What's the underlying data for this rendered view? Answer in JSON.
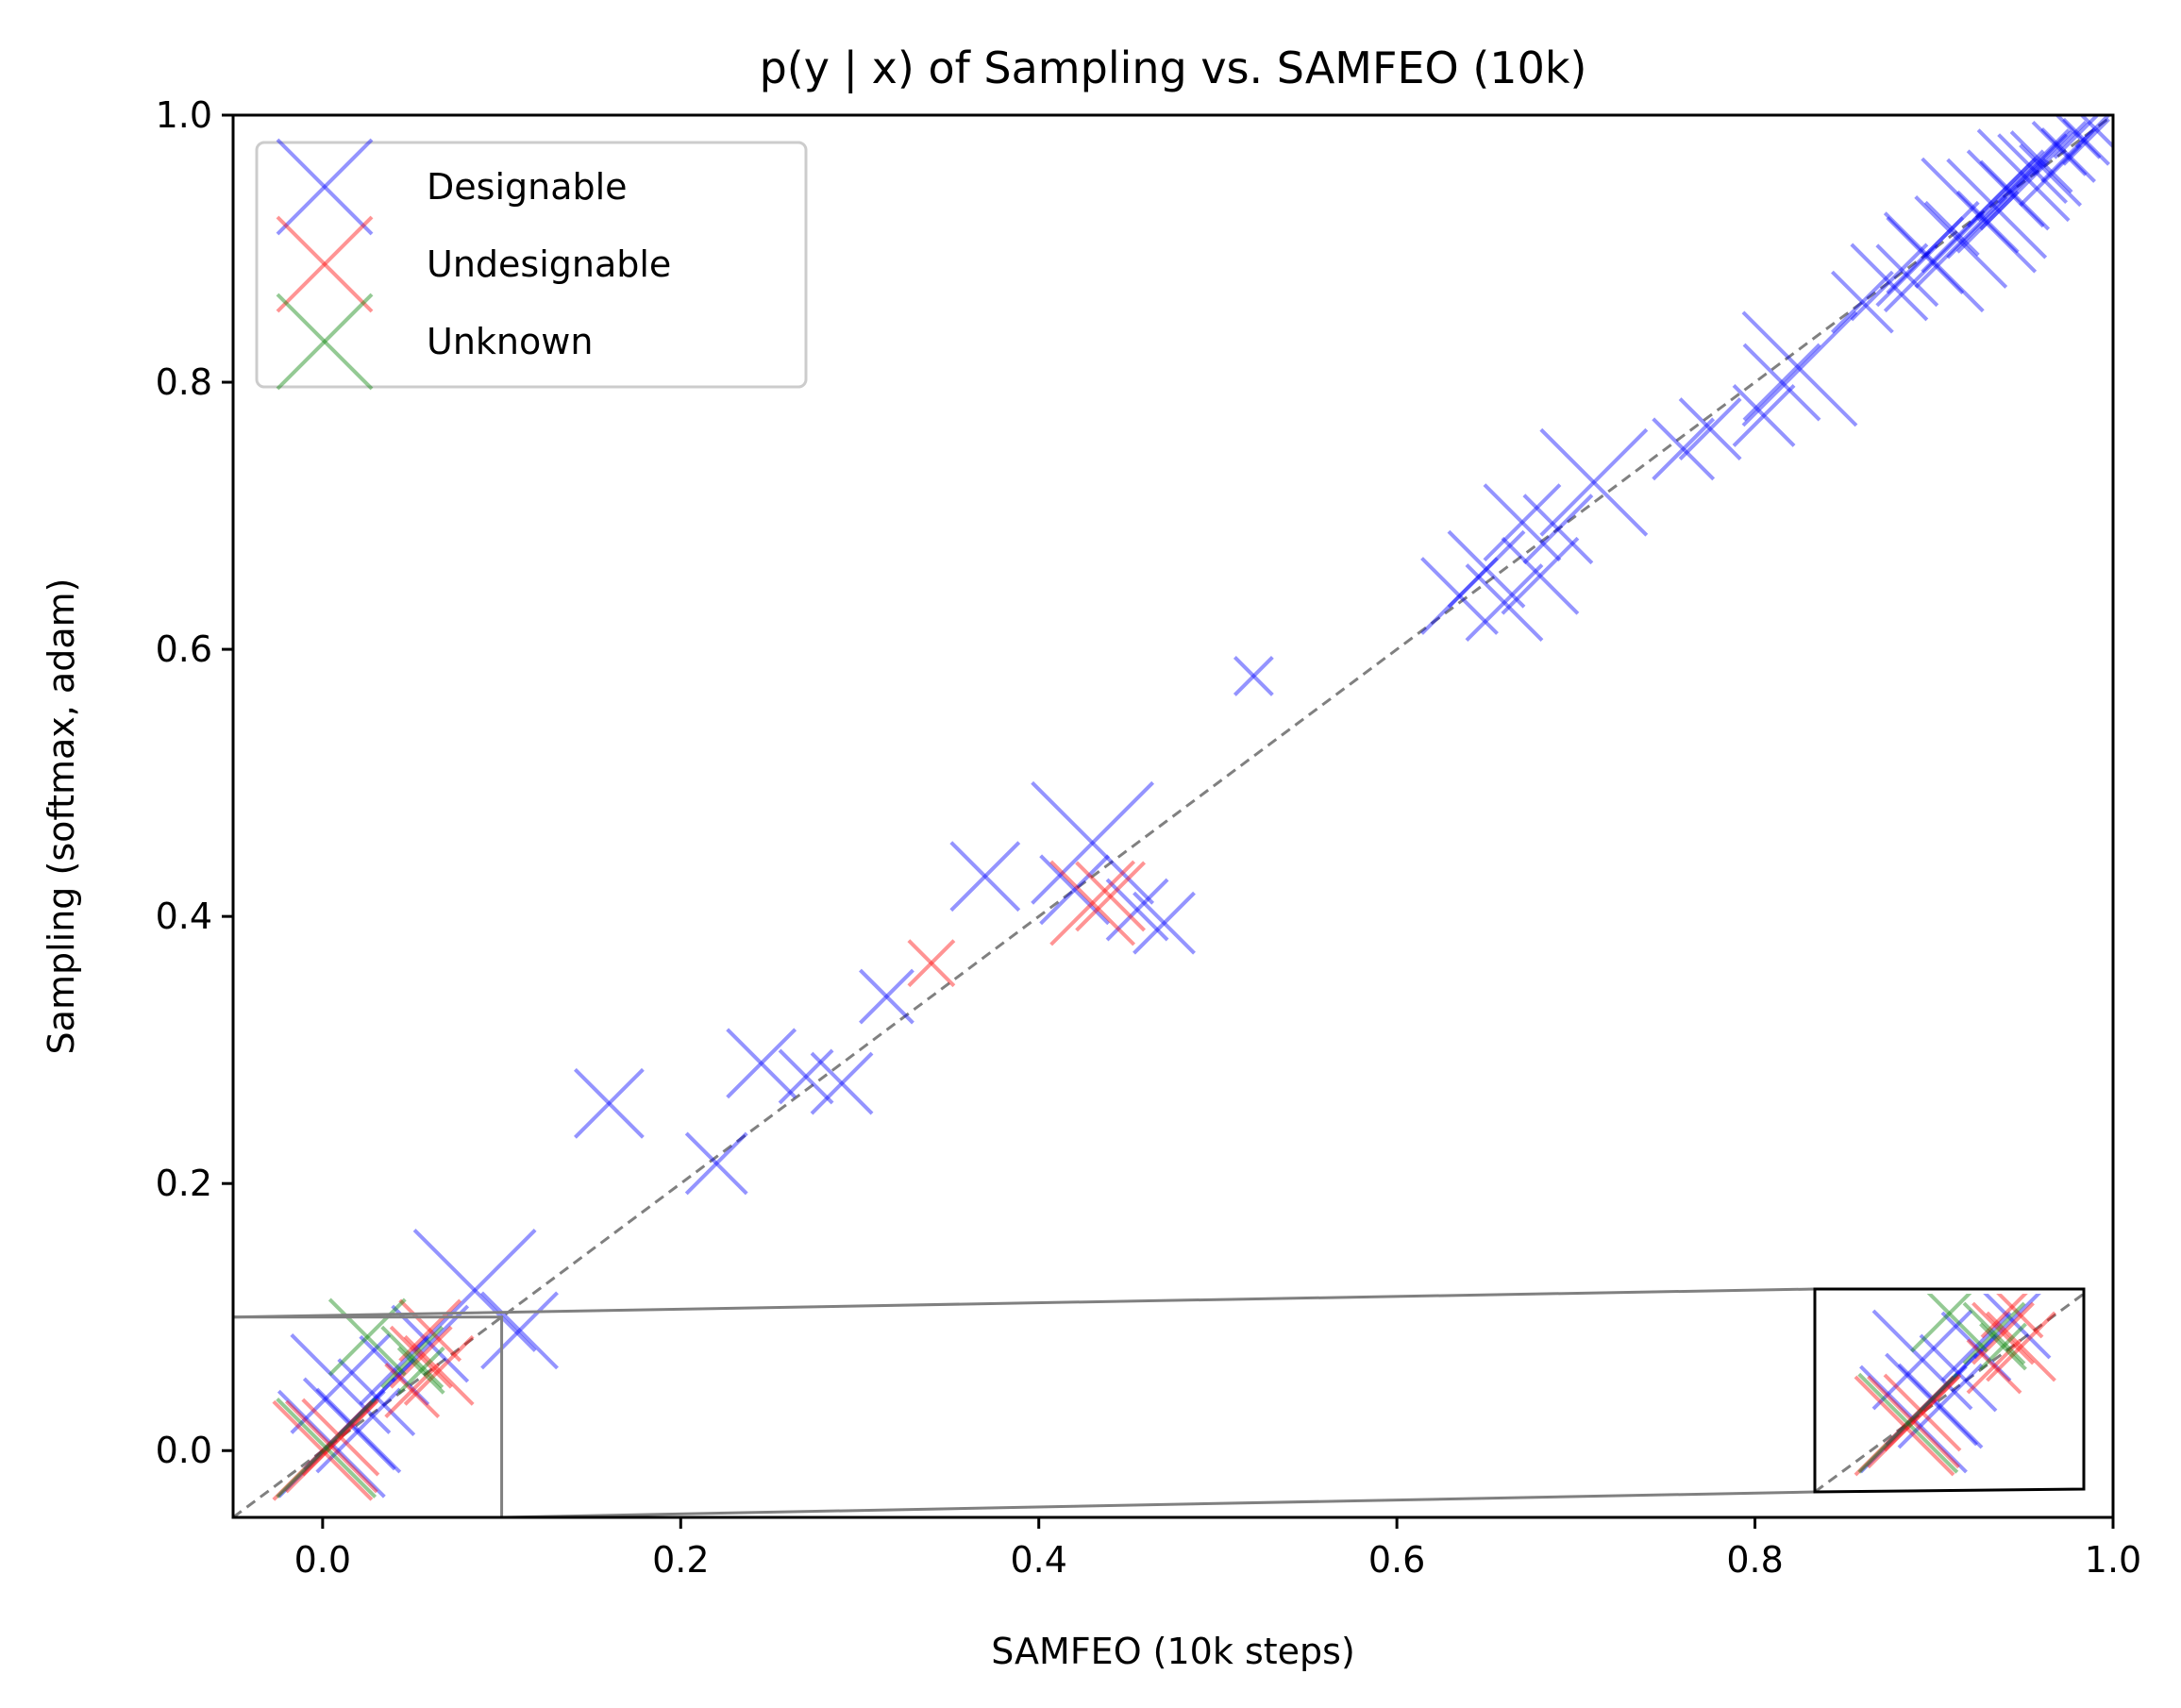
{
  "chart_data": {
    "type": "scatter",
    "title": "p(y | x) of Sampling vs. SAMFEO (10k)",
    "xlabel": "SAMFEO (10k steps)",
    "ylabel": "Sampling (softmax, adam)",
    "xlim": [
      -0.05,
      1.0
    ],
    "ylim": [
      -0.05,
      1.0
    ],
    "xticks": [
      "0.0",
      "0.2",
      "0.4",
      "0.6",
      "0.8",
      "1.0"
    ],
    "yticks": [
      "0.0",
      "0.2",
      "0.4",
      "0.6",
      "0.8",
      "1.0"
    ],
    "xtick_values": [
      0.0,
      0.2,
      0.4,
      0.6,
      0.8,
      1.0
    ],
    "ytick_values": [
      0.0,
      0.2,
      0.4,
      0.6,
      0.8,
      1.0
    ],
    "grid": false,
    "legend_position": "top-left",
    "reference_line": {
      "style": "dashed",
      "color": "#808080",
      "from": [
        -0.05,
        -0.05
      ],
      "to": [
        1.0,
        1.0
      ]
    },
    "inset": {
      "region_xlim": [
        -0.05,
        0.1
      ],
      "region_ylim": [
        -0.05,
        0.1
      ]
    },
    "series": [
      {
        "name": "Designable",
        "color": "#0000ff",
        "points": [
          [
            0.005,
            0.005,
            1.4
          ],
          [
            0.015,
            0.02,
            1.2
          ],
          [
            0.01,
            0.05,
            1.3
          ],
          [
            0.03,
            0.04,
            1.0
          ],
          [
            0.02,
            0.015,
            1.1
          ],
          [
            0.04,
            0.06,
            0.9
          ],
          [
            0.06,
            0.08,
            1.0
          ],
          [
            0.085,
            0.12,
            1.6
          ],
          [
            0.11,
            0.09,
            1.0
          ],
          [
            0.16,
            0.26,
            0.9
          ],
          [
            0.22,
            0.215,
            0.8
          ],
          [
            0.245,
            0.29,
            0.9
          ],
          [
            0.27,
            0.28,
            0.7
          ],
          [
            0.29,
            0.275,
            0.8
          ],
          [
            0.315,
            0.34,
            0.7
          ],
          [
            0.37,
            0.43,
            0.9
          ],
          [
            0.42,
            0.42,
            0.9
          ],
          [
            0.43,
            0.455,
            1.6
          ],
          [
            0.455,
            0.405,
            0.8
          ],
          [
            0.47,
            0.395,
            0.8
          ],
          [
            0.52,
            0.58,
            0.5
          ],
          [
            0.635,
            0.64,
            1.0
          ],
          [
            0.65,
            0.66,
            1.0
          ],
          [
            0.66,
            0.635,
            1.0
          ],
          [
            0.67,
            0.695,
            1.0
          ],
          [
            0.68,
            0.655,
            1.0
          ],
          [
            0.69,
            0.69,
            0.9
          ],
          [
            0.71,
            0.725,
            1.4
          ],
          [
            0.76,
            0.75,
            0.8
          ],
          [
            0.775,
            0.765,
            0.8
          ],
          [
            0.805,
            0.775,
            0.8
          ],
          [
            0.815,
            0.8,
            1.0
          ],
          [
            0.825,
            0.81,
            1.5
          ],
          [
            0.86,
            0.86,
            0.8
          ],
          [
            0.875,
            0.875,
            1.0
          ],
          [
            0.885,
            0.88,
            0.8
          ],
          [
            0.895,
            0.895,
            1.0
          ],
          [
            0.9,
            0.89,
            1.3
          ],
          [
            0.915,
            0.905,
            1.2
          ],
          [
            0.925,
            0.925,
            1.5
          ],
          [
            0.935,
            0.93,
            1.3
          ],
          [
            0.94,
            0.945,
            1.0
          ],
          [
            0.95,
            0.955,
            1.2
          ],
          [
            0.955,
            0.96,
            0.9
          ],
          [
            0.96,
            0.965,
            0.8
          ],
          [
            0.965,
            0.955,
            0.8
          ],
          [
            0.97,
            0.975,
            0.7
          ],
          [
            0.975,
            0.97,
            0.7
          ],
          [
            0.98,
            0.985,
            0.6
          ],
          [
            0.985,
            0.98,
            0.6
          ],
          [
            0.99,
            0.99,
            0.5
          ],
          [
            0.945,
            0.94,
            0.9
          ],
          [
            0.93,
            0.92,
            0.8
          ],
          [
            0.91,
            0.915,
            0.7
          ]
        ]
      },
      {
        "name": "Undesignable",
        "color": "#ff0000",
        "points": [
          [
            0.0,
            0.0,
            1.3
          ],
          [
            0.005,
            0.003,
            1.2
          ],
          [
            0.01,
            0.01,
            1.0
          ],
          [
            0.05,
            0.045,
            0.7
          ],
          [
            0.055,
            0.07,
            0.8
          ],
          [
            0.06,
            0.09,
            0.8
          ],
          [
            0.065,
            0.06,
            0.9
          ],
          [
            0.34,
            0.365,
            0.6
          ],
          [
            0.43,
            0.41,
            1.1
          ],
          [
            0.44,
            0.415,
            0.9
          ]
        ]
      },
      {
        "name": "Unknown",
        "color": "#008000",
        "points": [
          [
            0.002,
            0.002,
            1.3
          ],
          [
            0.025,
            0.085,
            1.0
          ],
          [
            0.05,
            0.07,
            0.8
          ],
          [
            0.055,
            0.06,
            0.6
          ]
        ]
      }
    ]
  }
}
